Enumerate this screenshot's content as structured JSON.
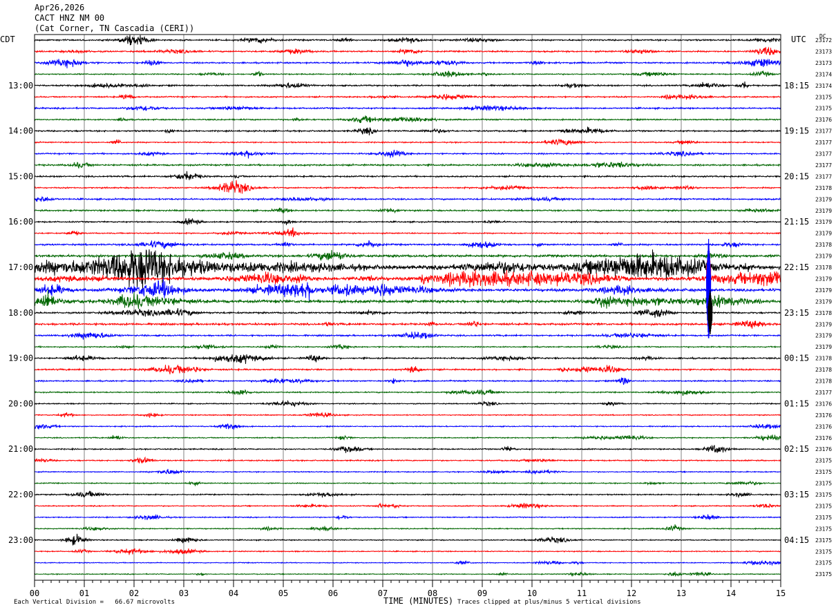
{
  "header": {
    "date": "Apr26,2026",
    "station": "CACT HNZ NM 00",
    "location": "(Cat Corner, TN Cascadia (CERI))"
  },
  "left_tz": "CDT",
  "right_tz": "UTC",
  "dc_label": "DC",
  "footer": {
    "scale_note": "Each Vertical Division =   66.67 microvolts",
    "xlabel": "TIME (MINUTES)",
    "clip_note": "Traces clipped at plus/minus 5 vertical divisions"
  },
  "colors": {
    "black": "#000000",
    "red": "#ff0000",
    "blue": "#0000ff",
    "green": "#006600",
    "grid": "#808080"
  },
  "chart_data": {
    "type": "line",
    "title": "",
    "xlabel": "TIME (MINUTES)",
    "x_range": [
      0,
      15
    ],
    "x_ticks": [
      "00",
      "01",
      "02",
      "03",
      "04",
      "05",
      "06",
      "07",
      "08",
      "09",
      "10",
      "11",
      "12",
      "13",
      "14",
      "15"
    ],
    "traces_per_hour": 4,
    "minutes_per_trace": 15,
    "trace_colors": [
      "black",
      "red",
      "blue",
      "green"
    ],
    "left_hour_labels": [
      "13:00",
      "14:00",
      "15:00",
      "16:00",
      "17:00",
      "18:00",
      "19:00",
      "20:00",
      "21:00",
      "22:00",
      "23:00"
    ],
    "right_hour_labels": [
      "18:15",
      "19:15",
      "20:15",
      "21:15",
      "22:15",
      "23:15",
      "00:15",
      "01:15",
      "02:15",
      "03:15",
      "04:15"
    ],
    "dc_offsets": [
      "23172",
      "23173",
      "23173",
      "23174",
      "23174",
      "23175",
      "23175",
      "23176",
      "23177",
      "23177",
      "23177",
      "23177",
      "23177",
      "23178",
      "23179",
      "23179",
      "23179",
      "23179",
      "23178",
      "23179",
      "23178",
      "23179",
      "23179",
      "23179",
      "23178",
      "23179",
      "23179",
      "23179",
      "23178",
      "23178",
      "23178",
      "23177",
      "23176",
      "23176",
      "23176",
      "23176",
      "23176",
      "23175",
      "23175",
      "23175",
      "23175",
      "23175",
      "23175",
      "23175",
      "23175",
      "23175",
      "23175",
      "23175"
    ],
    "first_row_left_label": "",
    "first_row_right_label": "",
    "activity_levels": [
      1.0,
      1.0,
      1.0,
      0.8,
      1.0,
      0.9,
      1.0,
      0.9,
      1.0,
      0.8,
      0.9,
      1.1,
      1.0,
      0.9,
      1.0,
      1.0,
      0.9,
      0.8,
      1.1,
      1.6,
      2.6,
      2.0,
      1.8,
      1.9,
      1.1,
      1.3,
      1.0,
      0.8,
      1.0,
      1.0,
      0.9,
      0.8,
      0.7,
      0.7,
      0.7,
      0.7,
      0.8,
      0.8,
      0.7,
      0.7,
      0.8,
      0.7,
      0.7,
      0.7,
      0.7,
      0.7,
      0.6,
      0.6
    ],
    "events": [
      {
        "trace": 21,
        "minute": 13.55,
        "amplitude": 6,
        "duration_min": 0.05
      },
      {
        "trace": 22,
        "minute": 13.55,
        "amplitude": 9,
        "duration_min": 0.08
      },
      {
        "trace": 24,
        "minute": 13.58,
        "amplitude": 4,
        "duration_min": 0.05
      }
    ]
  }
}
